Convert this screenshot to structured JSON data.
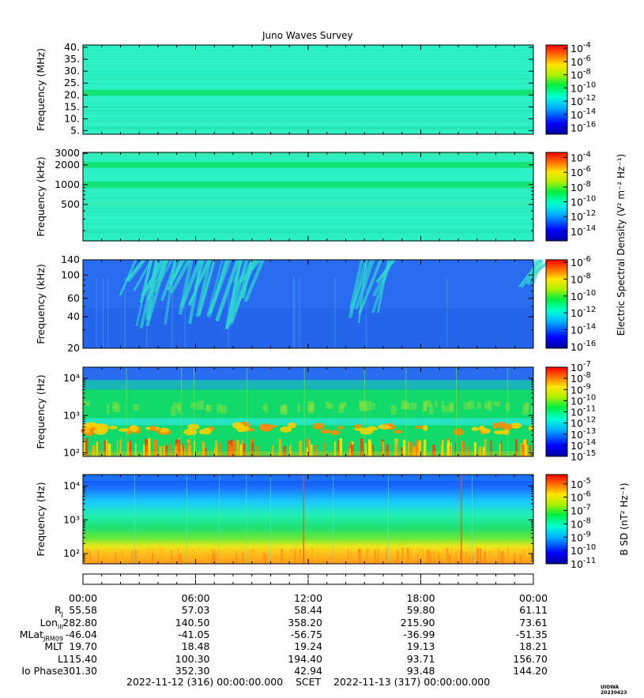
{
  "title": "Juno Waves Survey",
  "scet_label": "SCET",
  "start_time": "2022-11-12 (316) 00:00:00.000",
  "end_time": "2022-11-13 (317) 00:00:00.000",
  "stamp": "UIOWA 20230423",
  "shared_colorbar_label_base": "Electric Spectral Density (V",
  "chart_data": [
    {
      "type": "heatmap",
      "panel": "HFR high band",
      "ylabel": "Frequency (MHz)",
      "ylim": [
        3.5,
        41
      ],
      "y_scale": "linear",
      "y_ticks": [
        5,
        10,
        15,
        20,
        25,
        30,
        35,
        40
      ],
      "y_tick_labels": [
        "5.",
        "10.",
        "15.",
        "20.",
        "25.",
        "30.",
        "35.",
        "40."
      ],
      "background": "#2df2c8",
      "features": [
        {
          "kind": "band",
          "at": 21,
          "width": 2.5,
          "color": "#0fe26a",
          "strength": 0.9
        },
        {
          "kind": "band",
          "at": 8.5,
          "width": 0.8,
          "color": "#3be1b6",
          "strength": 0.5
        },
        {
          "kind": "band",
          "at": 27,
          "width": 0.6,
          "color": "#38e6b2",
          "strength": 0.4
        },
        {
          "kind": "band",
          "at": 32.5,
          "width": 0.6,
          "color": "#38e6b2",
          "strength": 0.35
        },
        {
          "kind": "band",
          "at": 37.5,
          "width": 0.6,
          "color": "#38e6b2",
          "strength": 0.35
        }
      ],
      "colorbar": {
        "ticks": [
          "10-4",
          "10-6",
          "10-8",
          "10-10",
          "10-12",
          "10-14",
          "10-16"
        ],
        "min_exp": -17,
        "max_exp": -3.5
      }
    },
    {
      "type": "heatmap",
      "panel": "HFR low band",
      "ylabel": "Frequency (kHz)",
      "ylim": [
        140,
        3100
      ],
      "y_scale": "log",
      "y_ticks": [
        500,
        1000,
        2000,
        3000
      ],
      "y_tick_labels": [
        "500",
        "1000",
        "2000",
        "3000"
      ],
      "background": "#2df2c8",
      "features": [
        {
          "kind": "band",
          "at": 2000,
          "width": 0.06,
          "color": "#0fe26a",
          "strength": 0.85
        },
        {
          "kind": "band",
          "at": 1000,
          "width": 0.06,
          "color": "#0fe26a",
          "strength": 0.85
        },
        {
          "kind": "band",
          "at": 520,
          "width": 0.04,
          "color": "#3fe5a8",
          "strength": 0.5
        },
        {
          "kind": "band",
          "at": 2850,
          "width": 0.04,
          "color": "#3fe5a8",
          "strength": 0.5
        }
      ],
      "colorbar": {
        "ticks": [
          "10-4",
          "10-6",
          "10-8",
          "10-10",
          "10-12",
          "10-14"
        ],
        "min_exp": -15.3,
        "max_exp": -3.3
      }
    },
    {
      "type": "heatmap",
      "panel": "LFR high",
      "ylabel": "Frequency (kHz)",
      "ylim": [
        20,
        140
      ],
      "y_scale": "log",
      "y_ticks": [
        20,
        40,
        60,
        100,
        140
      ],
      "y_tick_labels": [
        "20",
        "40",
        "60",
        "100",
        "140"
      ],
      "background": "#2a6cf0",
      "features": [
        {
          "kind": "burst",
          "t_start": 1.8,
          "t_end": 8.7,
          "f_low": 30,
          "color": "#2fd9d0"
        },
        {
          "kind": "burst",
          "t_start": 14.2,
          "t_end": 15.8,
          "f_low": 32,
          "color": "#2fd9d0"
        },
        {
          "kind": "burst",
          "t_start": 23.1,
          "t_end": 24,
          "f_low": 75,
          "color": "#2fd9d0"
        }
      ],
      "colorbar": {
        "ticks": [
          "10-6",
          "10-8",
          "10-10",
          "10-12",
          "10-14",
          "10-16"
        ],
        "min_exp": -16.2,
        "max_exp": -5.7
      }
    },
    {
      "type": "heatmap",
      "panel": "LFR low (electric)",
      "ylabel": "Frequency (Hz)",
      "ylim": [
        80,
        20000
      ],
      "y_scale": "log",
      "y_ticks": [
        100,
        1000,
        10000
      ],
      "y_tick_labels": [
        "10²",
        "10³",
        "10⁴"
      ],
      "background": "#2a6cf0",
      "features": [
        {
          "kind": "layers",
          "description": "blue above ~5 kHz, green 700 Hz-5 kHz, cyan band ~700 Hz, orange/red emission ~350-500 Hz, yellow-red columns below 200 Hz"
        }
      ],
      "colorbar": {
        "ticks": [
          "10-7",
          "10-8",
          "10-9",
          "10-10",
          "10-11",
          "10-12",
          "10-13",
          "10-14",
          "10-15"
        ],
        "min_exp": -15,
        "max_exp": -7
      }
    },
    {
      "type": "heatmap",
      "panel": "Magnetic",
      "ylabel": "Frequency (Hz)",
      "ylim": [
        50,
        22000
      ],
      "y_scale": "log",
      "y_ticks": [
        100,
        1000,
        10000
      ],
      "y_tick_labels": [
        "10²",
        "10³",
        "10⁴"
      ],
      "background": "#2a6cf0",
      "features": [
        {
          "kind": "gradient",
          "description": "blue near 10 kHz, cyan ~3 kHz, green ~500 Hz, yellow ~200 Hz, orange below 150 Hz"
        }
      ],
      "colorbar": {
        "ticks": [
          "10-5",
          "10-6",
          "10-7",
          "10-8",
          "10-9",
          "10-10",
          "10-11"
        ],
        "min_exp": -11,
        "max_exp": -4.3,
        "label": "B SD (nT2 Hz-1)"
      }
    }
  ],
  "time_axis": {
    "range_hours": [
      0,
      24
    ],
    "tick_labels": [
      "00:00",
      "06:00",
      "12:00",
      "18:00",
      "00:00"
    ]
  },
  "ephemeris": [
    {
      "label": "RJ",
      "values": [
        "55.58",
        "57.03",
        "58.44",
        "59.80",
        "61.11"
      ]
    },
    {
      "label": "LonIII",
      "values": [
        "282.80",
        "140.50",
        "358.20",
        "215.90",
        "73.61"
      ]
    },
    {
      "label": "MLatJRM09",
      "values": [
        "-46.04",
        "-41.05",
        "-56.75",
        "-36.99",
        "-51.35"
      ]
    },
    {
      "label": "MLT",
      "values": [
        "19.70",
        "18.48",
        "19.24",
        "19.13",
        "18.21"
      ]
    },
    {
      "label": "L",
      "values": [
        "115.40",
        "100.30",
        "194.40",
        "93.71",
        "156.70"
      ]
    },
    {
      "label": "Io Phase",
      "values": [
        "301.30",
        "352.30",
        "42.94",
        "93.48",
        "144.20"
      ]
    }
  ]
}
